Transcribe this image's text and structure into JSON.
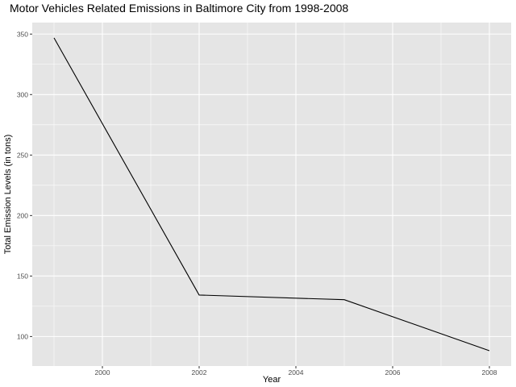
{
  "chart_data": {
    "type": "line",
    "title": "Motor Vehicles Related Emissions in Baltimore City from 1998-2008",
    "xlabel": "Year",
    "ylabel": "Total Emission Levels (in tons)",
    "x": [
      1999,
      2002,
      2005,
      2008
    ],
    "series": [
      {
        "values": [
          346.82,
          134.31,
          130.43,
          88.28
        ]
      }
    ],
    "xlim": [
      1998.55,
      2008.45
    ],
    "ylim": [
      75.6,
      359.5
    ],
    "xticks": [
      2000,
      2002,
      2004,
      2006,
      2008
    ],
    "xtick_labels": [
      "2000",
      "2002",
      "2004",
      "2006",
      "2008"
    ],
    "yticks": [
      100,
      150,
      200,
      250,
      300,
      350
    ],
    "ytick_labels": [
      "100",
      "150",
      "200",
      "250",
      "300",
      "350"
    ],
    "x_minor": [
      1999,
      2001,
      2003,
      2005,
      2007
    ],
    "y_minor": [
      125,
      175,
      225,
      275,
      325
    ],
    "grid": true,
    "line_color": "#000000",
    "panel_color": "#e5e5e5",
    "grid_color": "#ffffff"
  }
}
